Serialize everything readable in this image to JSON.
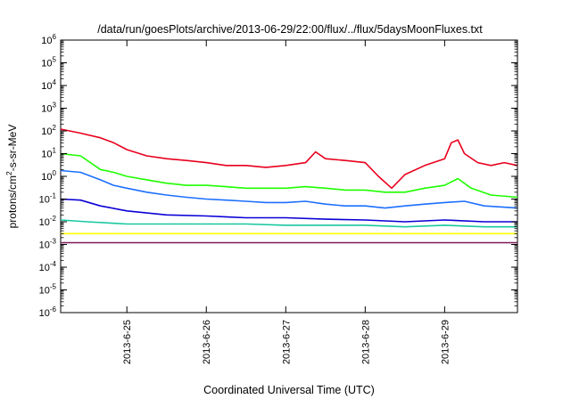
{
  "chart_data": {
    "type": "line",
    "title": "/data/run/goesPlots/archive/2013-06-29/22:00/flux/../flux/5daysMoonFluxes.txt",
    "xlabel": "Coordinated Universal Time (UTC)",
    "ylabel_parts": {
      "base": "protons/cm",
      "exp": "2",
      "rest": "-s-sr-MeV"
    },
    "yscale": "log",
    "ylim": [
      1e-06,
      1000000.0
    ],
    "y_ticks": [
      {
        "value": 1e-06,
        "exp": "-6"
      },
      {
        "value": 1e-05,
        "exp": "-5"
      },
      {
        "value": 0.0001,
        "exp": "-4"
      },
      {
        "value": 0.001,
        "exp": "-3"
      },
      {
        "value": 0.01,
        "exp": "-2"
      },
      {
        "value": 0.1,
        "exp": "-1"
      },
      {
        "value": 1.0,
        "exp": "0"
      },
      {
        "value": 10.0,
        "exp": "1"
      },
      {
        "value": 100.0,
        "exp": "2"
      },
      {
        "value": 1000.0,
        "exp": "3"
      },
      {
        "value": 10000.0,
        "exp": "4"
      },
      {
        "value": 100000.0,
        "exp": "5"
      },
      {
        "value": 1000000.0,
        "exp": "6"
      }
    ],
    "y_tick_base": "10",
    "xlim": [
      "2013-06-24T04:00",
      "2013-06-29T22:00"
    ],
    "x_ticks": [
      {
        "value": "2013-06-25T00:00",
        "label": "2013-6-25"
      },
      {
        "value": "2013-06-26T00:00",
        "label": "2013-6-26"
      },
      {
        "value": "2013-06-27T00:00",
        "label": "2013-6-27"
      },
      {
        "value": "2013-06-28T00:00",
        "label": "2013-6-28"
      },
      {
        "value": "2013-06-29T00:00",
        "label": "2013-6-29"
      }
    ],
    "grid": false,
    "legend": "none",
    "series": [
      {
        "color": "#e8001c",
        "x": [
          "2013-06-24T04:00",
          "2013-06-24T10:00",
          "2013-06-24T16:00",
          "2013-06-24T20:00",
          "2013-06-25T00:00",
          "2013-06-25T06:00",
          "2013-06-25T12:00",
          "2013-06-25T18:00",
          "2013-06-26T00:00",
          "2013-06-26T06:00",
          "2013-06-26T12:00",
          "2013-06-26T18:00",
          "2013-06-27T00:00",
          "2013-06-27T06:00",
          "2013-06-27T09:00",
          "2013-06-27T12:00",
          "2013-06-27T18:00",
          "2013-06-28T00:00",
          "2013-06-28T04:00",
          "2013-06-28T08:00",
          "2013-06-28T12:00",
          "2013-06-28T18:00",
          "2013-06-29T00:00",
          "2013-06-29T02:00",
          "2013-06-29T04:00",
          "2013-06-29T06:00",
          "2013-06-29T10:00",
          "2013-06-29T14:00",
          "2013-06-29T18:00",
          "2013-06-29T22:00"
        ],
        "y": [
          120,
          80,
          50,
          30,
          15,
          8,
          6,
          5,
          4,
          3,
          3,
          2.5,
          3,
          4,
          12,
          6,
          5,
          4,
          1,
          0.3,
          1.2,
          3,
          6,
          30,
          40,
          10,
          4,
          3,
          4,
          3
        ]
      },
      {
        "color": "#1eff00",
        "x": [
          "2013-06-24T04:00",
          "2013-06-24T10:00",
          "2013-06-24T16:00",
          "2013-06-24T20:00",
          "2013-06-25T00:00",
          "2013-06-25T06:00",
          "2013-06-25T12:00",
          "2013-06-25T18:00",
          "2013-06-26T00:00",
          "2013-06-26T06:00",
          "2013-06-26T12:00",
          "2013-06-26T18:00",
          "2013-06-27T00:00",
          "2013-06-27T06:00",
          "2013-06-27T12:00",
          "2013-06-27T18:00",
          "2013-06-28T00:00",
          "2013-06-28T06:00",
          "2013-06-28T12:00",
          "2013-06-28T18:00",
          "2013-06-29T00:00",
          "2013-06-29T04:00",
          "2013-06-29T08:00",
          "2013-06-29T14:00",
          "2013-06-29T22:00"
        ],
        "y": [
          10,
          8,
          2,
          1.5,
          1,
          0.7,
          0.5,
          0.4,
          0.4,
          0.35,
          0.3,
          0.3,
          0.3,
          0.35,
          0.3,
          0.25,
          0.25,
          0.2,
          0.2,
          0.3,
          0.4,
          0.8,
          0.3,
          0.15,
          0.12
        ]
      },
      {
        "color": "#1c6fff",
        "x": [
          "2013-06-24T04:00",
          "2013-06-24T10:00",
          "2013-06-24T16:00",
          "2013-06-24T20:00",
          "2013-06-25T00:00",
          "2013-06-25T06:00",
          "2013-06-25T12:00",
          "2013-06-25T18:00",
          "2013-06-26T00:00",
          "2013-06-26T06:00",
          "2013-06-26T12:00",
          "2013-06-26T18:00",
          "2013-06-27T00:00",
          "2013-06-27T06:00",
          "2013-06-27T12:00",
          "2013-06-27T18:00",
          "2013-06-28T00:00",
          "2013-06-28T06:00",
          "2013-06-28T12:00",
          "2013-06-28T18:00",
          "2013-06-29T00:00",
          "2013-06-29T06:00",
          "2013-06-29T12:00",
          "2013-06-29T22:00"
        ],
        "y": [
          1.8,
          1.5,
          0.7,
          0.4,
          0.3,
          0.2,
          0.15,
          0.12,
          0.1,
          0.09,
          0.08,
          0.07,
          0.07,
          0.08,
          0.06,
          0.05,
          0.05,
          0.04,
          0.05,
          0.06,
          0.07,
          0.08,
          0.05,
          0.04
        ]
      },
      {
        "color": "#0a00d6",
        "x": [
          "2013-06-24T04:00",
          "2013-06-24T10:00",
          "2013-06-24T16:00",
          "2013-06-25T00:00",
          "2013-06-25T12:00",
          "2013-06-26T00:00",
          "2013-06-26T12:00",
          "2013-06-27T00:00",
          "2013-06-27T12:00",
          "2013-06-28T00:00",
          "2013-06-28T12:00",
          "2013-06-29T00:00",
          "2013-06-29T12:00",
          "2013-06-29T22:00"
        ],
        "y": [
          0.1,
          0.09,
          0.05,
          0.03,
          0.02,
          0.018,
          0.015,
          0.015,
          0.013,
          0.012,
          0.01,
          0.012,
          0.01,
          0.01
        ]
      },
      {
        "color": "#18c8a0",
        "x": [
          "2013-06-24T04:00",
          "2013-06-24T12:00",
          "2013-06-25T00:00",
          "2013-06-25T12:00",
          "2013-06-26T00:00",
          "2013-06-26T12:00",
          "2013-06-27T00:00",
          "2013-06-27T12:00",
          "2013-06-28T00:00",
          "2013-06-28T12:00",
          "2013-06-29T00:00",
          "2013-06-29T12:00",
          "2013-06-29T22:00"
        ],
        "y": [
          0.012,
          0.01,
          0.008,
          0.008,
          0.008,
          0.008,
          0.007,
          0.007,
          0.007,
          0.006,
          0.007,
          0.006,
          0.006
        ]
      },
      {
        "color": "#ffff00",
        "x": [
          "2013-06-24T04:00",
          "2013-06-25T00:00",
          "2013-06-26T00:00",
          "2013-06-27T00:00",
          "2013-06-28T00:00",
          "2013-06-29T00:00",
          "2013-06-29T22:00"
        ],
        "y": [
          0.003,
          0.003,
          0.003,
          0.003,
          0.003,
          0.003,
          0.003
        ]
      },
      {
        "color": "#7a1a56",
        "x": [
          "2013-06-24T04:00",
          "2013-06-25T00:00",
          "2013-06-26T00:00",
          "2013-06-27T00:00",
          "2013-06-28T00:00",
          "2013-06-29T00:00",
          "2013-06-29T22:00"
        ],
        "y": [
          0.0012,
          0.0012,
          0.0012,
          0.0012,
          0.0012,
          0.0012,
          0.0012
        ]
      }
    ]
  }
}
